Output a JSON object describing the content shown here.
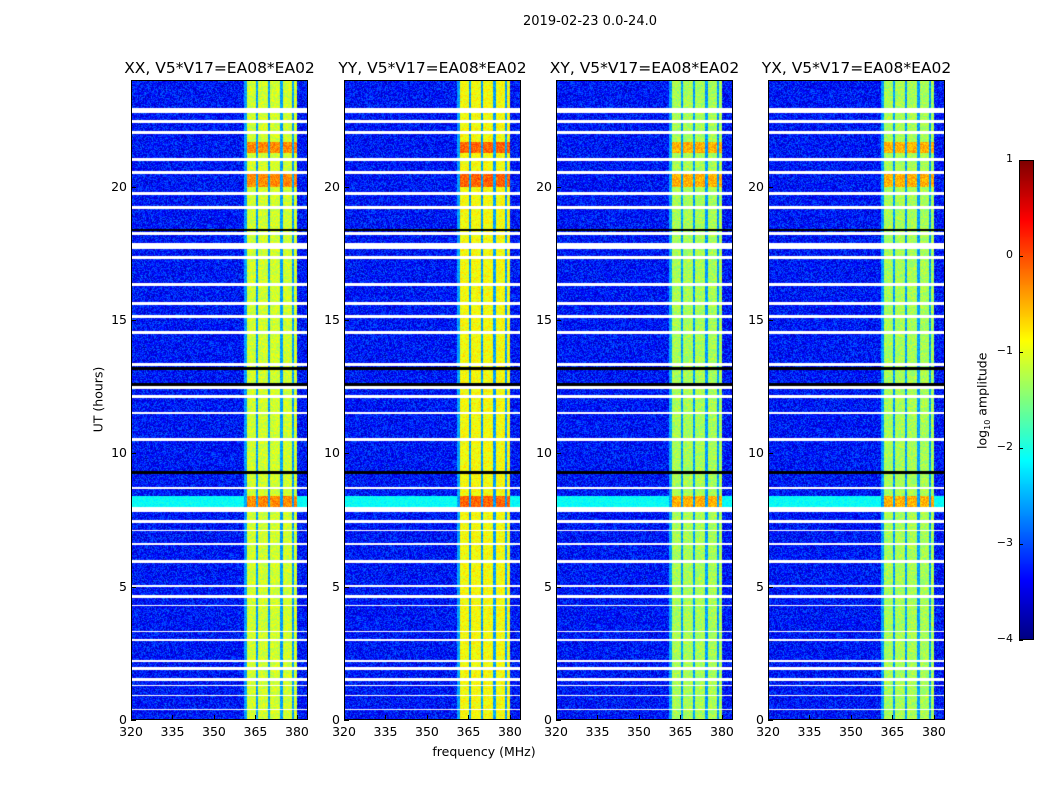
{
  "chart_data": {
    "type": "heatmap",
    "title": "2019-02-23 0.0-24.0",
    "xlabel": "frequency (MHz)",
    "ylabel": "UT (hours)",
    "xlim": [
      320,
      384
    ],
    "ylim": [
      0,
      24
    ],
    "xticks": [
      "320",
      "335",
      "350",
      "365",
      "380"
    ],
    "xtick_values": [
      320,
      335,
      350,
      365,
      380
    ],
    "yticks": [
      "0",
      "5",
      "10",
      "15",
      "20"
    ],
    "ytick_values": [
      0,
      5,
      10,
      15,
      20
    ],
    "panels": [
      {
        "title": "XX, V5*V17=EA08*EA02",
        "band_level": -1.1,
        "bright_hours": [
          8.0,
          8.4,
          20.0,
          20.5,
          21.3,
          21.7
        ]
      },
      {
        "title": "YY, V5*V17=EA08*EA02",
        "band_level": -0.9,
        "bright_hours": [
          8.0,
          8.4,
          20.0,
          20.5,
          21.3,
          21.7
        ]
      },
      {
        "title": "XY, V5*V17=EA08*EA02",
        "band_level": -1.3,
        "bright_hours": [
          8.0,
          8.4,
          20.0,
          20.5,
          21.3,
          21.7
        ]
      },
      {
        "title": "YX, V5*V17=EA08*EA02",
        "band_level": -1.3,
        "bright_hours": [
          8.0,
          8.4,
          20.0,
          20.5,
          21.3,
          21.7
        ]
      }
    ],
    "band_mhz": [
      360.5,
      380
    ],
    "background_level": -3.3,
    "flagged_hours": [
      [
        0.4,
        0.45
      ],
      [
        0.9,
        0.95
      ],
      [
        1.3,
        1.35
      ],
      [
        1.5,
        1.6
      ],
      [
        1.9,
        2.0
      ],
      [
        2.2,
        2.25
      ],
      [
        3.0,
        3.05
      ],
      [
        3.3,
        3.35
      ],
      [
        4.3,
        4.35
      ],
      [
        4.6,
        4.7
      ],
      [
        5.0,
        5.1
      ],
      [
        5.9,
        6.0
      ],
      [
        6.6,
        6.65
      ],
      [
        7.1,
        7.15
      ],
      [
        7.4,
        7.5
      ],
      [
        7.8,
        8.0
      ],
      [
        8.7,
        8.75
      ],
      [
        10.5,
        10.6
      ],
      [
        11.5,
        11.55
      ],
      [
        12.1,
        12.2
      ],
      [
        12.45,
        12.55
      ],
      [
        13.3,
        13.4
      ],
      [
        14.5,
        14.6
      ],
      [
        15.1,
        15.2
      ],
      [
        15.6,
        15.7
      ],
      [
        16.3,
        16.4
      ],
      [
        17.3,
        17.4
      ],
      [
        17.7,
        17.9
      ],
      [
        18.2,
        18.3
      ],
      [
        19.2,
        19.3
      ],
      [
        19.7,
        19.8
      ],
      [
        20.5,
        20.6
      ],
      [
        21.0,
        21.1
      ],
      [
        22.0,
        22.1
      ],
      [
        22.4,
        22.5
      ],
      [
        22.8,
        22.95
      ]
    ],
    "colorbar": {
      "label_main": "log",
      "label_sub": "10",
      "label_rest": " amplitude",
      "ticks": [
        "1",
        "0",
        "−1",
        "−2",
        "−3",
        "−4"
      ],
      "tick_values": [
        1,
        0,
        -1,
        -2,
        -3,
        -4
      ],
      "range": [
        -4,
        1
      ],
      "colormap": "jet"
    }
  }
}
